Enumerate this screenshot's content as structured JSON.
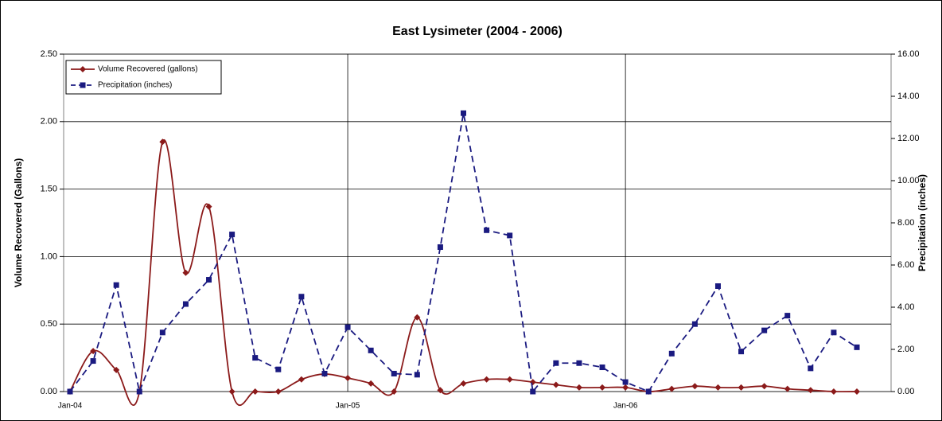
{
  "chart_data": {
    "type": "line",
    "title": "East Lysimeter (2004 - 2006)",
    "y_label": "Volume Recovered (Gallons)",
    "y2_label": "Precipitation (inches)",
    "categories": [
      "Jan-04",
      null,
      null,
      null,
      null,
      null,
      null,
      null,
      null,
      null,
      null,
      null,
      "Jan-05",
      null,
      null,
      null,
      null,
      null,
      null,
      null,
      null,
      null,
      null,
      null,
      "Jan-06",
      null,
      null,
      null,
      null,
      null,
      null,
      null,
      null,
      null,
      null
    ],
    "series": [
      {
        "name": "Volume Recovered (gallons)",
        "color": "#8b1a1a",
        "marker": "diamond",
        "dash": false,
        "smooth": true,
        "axis": "y",
        "values": [
          0,
          0.3,
          0.16,
          0,
          1.85,
          0.88,
          1.37,
          0,
          0,
          0,
          0.09,
          0.13,
          0.1,
          0.06,
          0,
          0.55,
          0.01,
          0.06,
          0.09,
          0.09,
          0.07,
          0.05,
          0.03,
          0.03,
          0.03,
          0,
          0.02,
          0.04,
          0.03,
          0.03,
          0.04,
          0.02,
          0.01,
          0,
          0
        ]
      },
      {
        "name": "Precipitation (inches)",
        "color": "#1a1a80",
        "marker": "square",
        "dash": true,
        "smooth": false,
        "axis": "y2",
        "values": [
          0,
          1.45,
          5.05,
          0,
          2.8,
          4.15,
          5.3,
          7.45,
          1.6,
          1.05,
          4.5,
          0.85,
          3.05,
          1.95,
          0.85,
          0.8,
          6.85,
          13.2,
          7.65,
          7.4,
          0,
          1.35,
          1.35,
          1.15,
          0.45,
          0,
          1.8,
          3.2,
          5.0,
          1.9,
          2.9,
          3.6,
          1.1,
          2.8,
          2.1
        ]
      }
    ],
    "ylim": [
      0,
      2.5
    ],
    "yticks": [
      {
        "value": 0,
        "label": "0.00"
      },
      {
        "value": 0.5,
        "label": "0.50"
      },
      {
        "value": 1,
        "label": "1.00"
      },
      {
        "value": 1.5,
        "label": "1.50"
      },
      {
        "value": 2,
        "label": "2.00"
      },
      {
        "value": 2.5,
        "label": "2.50"
      }
    ],
    "y2lim": [
      0,
      16
    ],
    "y2ticks": [
      {
        "value": 0,
        "label": "0.00"
      },
      {
        "value": 2,
        "label": "2.00"
      },
      {
        "value": 4,
        "label": "4.00"
      },
      {
        "value": 6,
        "label": "6.00"
      },
      {
        "value": 8,
        "label": "8.00"
      },
      {
        "value": 10,
        "label": "10.00"
      },
      {
        "value": 12,
        "label": "12.00"
      },
      {
        "value": 14,
        "label": "14.00"
      },
      {
        "value": 16,
        "label": "16.00"
      }
    ],
    "grid": true,
    "legend": "upper left"
  }
}
